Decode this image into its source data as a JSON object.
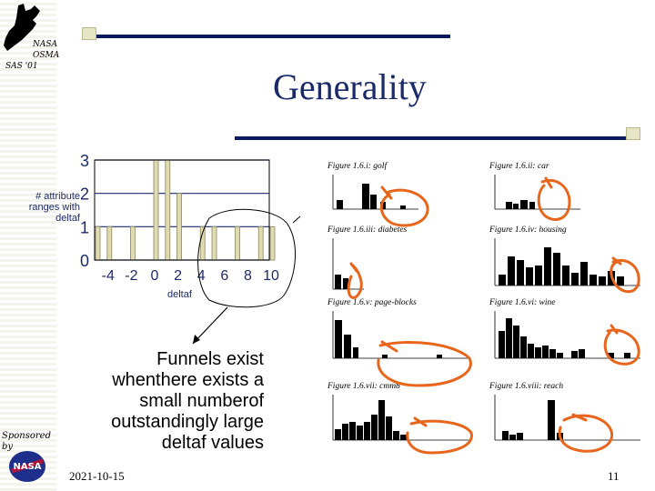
{
  "header": {
    "logo_lines": [
      "NASA",
      "OSMA",
      "SAS '01"
    ],
    "title": "Generality"
  },
  "chart_data": {
    "type": "bar",
    "x": [
      -5,
      -4,
      -2,
      0,
      1,
      2,
      4,
      5,
      7,
      9,
      10
    ],
    "values": [
      1,
      1,
      1,
      3,
      3,
      2,
      1,
      1,
      1,
      1,
      1
    ],
    "xticks": [
      "-4",
      "-2",
      "0",
      "2",
      "4",
      "6",
      "8",
      "10"
    ],
    "yticks": [
      "0",
      "1",
      "2",
      "3"
    ],
    "xlim": [
      -5,
      10
    ],
    "ylim": [
      0,
      3
    ],
    "xlabel": "deltaf",
    "ylabel": "# attribute ranges with deltaf",
    "grid": true
  },
  "figures": [
    {
      "title": "Figure 1.6.i: golf"
    },
    {
      "title": "Figure 1.6.ii: car"
    },
    {
      "title": "Figure 1.6.iii: diabetes"
    },
    {
      "title": "Figure 1.6.iv: housing"
    },
    {
      "title": "Figure 1.6.v: page-blocks"
    },
    {
      "title": "Figure 1.6.vi: wine"
    },
    {
      "title": "Figure 1.6.vii: cmm8"
    },
    {
      "title": "Figure 1.6.viii: reach"
    }
  ],
  "annotation": {
    "text": "Funnels exist whenthere exists a small numberof outstandingly large deltaf values"
  },
  "footer": {
    "date": "2021-10-15",
    "page": "11",
    "sponsor_label": "Sponsored by",
    "sponsor_logo": "NASA"
  },
  "colors": {
    "accent_blue": "#0a1a5c",
    "title_blue": "#1b2a6b",
    "bar_fill": "#e0dcb0",
    "highlight_orange": "#e8651c"
  }
}
